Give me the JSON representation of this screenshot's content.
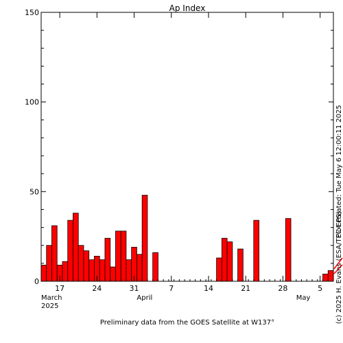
{
  "chart_data": {
    "type": "bar",
    "title": "Ap Index",
    "footer": "Preliminary data from the GOES Satellite at W137°",
    "side_right": "Plot created: Tue May  6 12:00:11 2025",
    "side_left": "(c) 2025 H. Evans (ESA/TEC-EPS)",
    "ylim": [
      0,
      150
    ],
    "y_ticks": [
      0,
      50,
      100,
      150
    ],
    "x_range_days": [
      "2025-03-14",
      "2025-05-07"
    ],
    "x_tick_labels": [
      {
        "date": "2025-03-17",
        "label": "17"
      },
      {
        "date": "2025-03-24",
        "label": "24"
      },
      {
        "date": "2025-03-31",
        "label": "31"
      },
      {
        "date": "2025-04-07",
        "label": "7"
      },
      {
        "date": "2025-04-14",
        "label": "14"
      },
      {
        "date": "2025-04-21",
        "label": "21"
      },
      {
        "date": "2025-04-28",
        "label": "28"
      },
      {
        "date": "2025-05-05",
        "label": "5"
      }
    ],
    "month_labels": [
      {
        "date": "2025-03-14",
        "label": "March",
        "year": "2025"
      },
      {
        "date": "2025-04-01",
        "label": "April"
      },
      {
        "date": "2025-05-01",
        "label": "May"
      }
    ],
    "bars": [
      {
        "date": "2025-03-14",
        "value": 9
      },
      {
        "date": "2025-03-15",
        "value": 20
      },
      {
        "date": "2025-03-16",
        "value": 31
      },
      {
        "date": "2025-03-17",
        "value": 9
      },
      {
        "date": "2025-03-18",
        "value": 11
      },
      {
        "date": "2025-03-19",
        "value": 34
      },
      {
        "date": "2025-03-20",
        "value": 38
      },
      {
        "date": "2025-03-21",
        "value": 20
      },
      {
        "date": "2025-03-22",
        "value": 17
      },
      {
        "date": "2025-03-23",
        "value": 12
      },
      {
        "date": "2025-03-24",
        "value": 14
      },
      {
        "date": "2025-03-25",
        "value": 12
      },
      {
        "date": "2025-03-26",
        "value": 24
      },
      {
        "date": "2025-03-27",
        "value": 8
      },
      {
        "date": "2025-03-28",
        "value": 28
      },
      {
        "date": "2025-03-29",
        "value": 28
      },
      {
        "date": "2025-03-30",
        "value": 12
      },
      {
        "date": "2025-03-31",
        "value": 19
      },
      {
        "date": "2025-04-01",
        "value": 15
      },
      {
        "date": "2025-04-02",
        "value": 48
      },
      {
        "date": "2025-04-04",
        "value": 16
      },
      {
        "date": "2025-04-16",
        "value": 13
      },
      {
        "date": "2025-04-17",
        "value": 24
      },
      {
        "date": "2025-04-18",
        "value": 22
      },
      {
        "date": "2025-04-20",
        "value": 18
      },
      {
        "date": "2025-04-23",
        "value": 34
      },
      {
        "date": "2025-04-29",
        "value": 35
      },
      {
        "date": "2025-05-06",
        "value": 4
      },
      {
        "date": "2025-05-07",
        "value": 6
      }
    ],
    "grid": false,
    "bar_color": "#ff0000",
    "bar_outline_color": "#000000",
    "decoration_color": "#ff0000"
  }
}
